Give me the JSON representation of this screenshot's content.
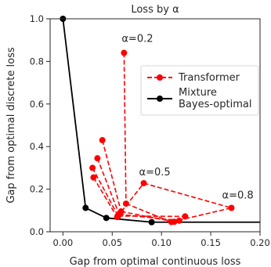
{
  "chart_data": {
    "type": "line",
    "title": "Loss by α",
    "xlabel": "Gap from optimal continuous loss",
    "ylabel": "Gap from optimal discrete loss",
    "xlim": [
      -0.013,
      0.2
    ],
    "ylim": [
      0,
      1.0
    ],
    "xticks": [
      0.0,
      0.05,
      0.1,
      0.15,
      0.2
    ],
    "xtick_labels": [
      "0.00",
      "0.05",
      "0.10",
      "0.15",
      "0.20"
    ],
    "yticks": [
      0.0,
      0.2,
      0.4,
      0.6,
      0.8,
      1.0
    ],
    "ytick_labels": [
      "0.0",
      "0.2",
      "0.4",
      "0.6",
      "0.8",
      "1.0"
    ],
    "grid": false,
    "legend_position": "right",
    "series": [
      {
        "name": "Transformer",
        "color": "#ff0000",
        "line_style": "dashed",
        "marker": "circle",
        "points": [
          [
            0.031,
            0.255
          ],
          [
            0.03,
            0.3
          ],
          [
            0.035,
            0.345
          ],
          [
            0.04,
            0.43
          ],
          [
            0.062,
            0.84
          ],
          [
            0.082,
            0.228
          ],
          [
            0.171,
            0.112
          ],
          [
            0.124,
            0.072
          ],
          [
            0.118,
            0.052
          ],
          [
            0.113,
            0.047
          ],
          [
            0.11,
            0.046
          ],
          [
            0.064,
            0.132
          ],
          [
            0.059,
            0.095
          ],
          [
            0.057,
            0.082
          ],
          [
            0.056,
            0.074
          ],
          [
            0.055,
            0.069
          ]
        ],
        "links": [
          [
            [
              0.031,
              0.255
            ],
            [
              0.055,
              0.069
            ]
          ],
          [
            [
              0.03,
              0.3
            ],
            [
              0.056,
              0.074
            ]
          ],
          [
            [
              0.035,
              0.345
            ],
            [
              0.057,
              0.082
            ]
          ],
          [
            [
              0.04,
              0.43
            ],
            [
              0.059,
              0.095
            ]
          ],
          [
            [
              0.062,
              0.84
            ],
            [
              0.064,
              0.132
            ]
          ],
          [
            [
              0.064,
              0.132
            ],
            [
              0.11,
              0.046
            ]
          ],
          [
            [
              0.059,
              0.095
            ],
            [
              0.113,
              0.047
            ]
          ],
          [
            [
              0.057,
              0.082
            ],
            [
              0.118,
              0.052
            ]
          ],
          [
            [
              0.056,
              0.074
            ],
            [
              0.124,
              0.072
            ]
          ],
          [
            [
              0.055,
              0.069
            ],
            [
              0.082,
              0.228
            ]
          ],
          [
            [
              0.082,
              0.228
            ],
            [
              0.171,
              0.112
            ]
          ],
          [
            [
              0.11,
              0.046
            ],
            [
              0.171,
              0.112
            ]
          ]
        ]
      },
      {
        "name": "Mixture\nBayes-optimal",
        "color": "#000000",
        "line_style": "solid",
        "marker": "circle",
        "points": [
          [
            0.0,
            1.0
          ],
          [
            0.023,
            0.112
          ],
          [
            0.044,
            0.065
          ],
          [
            0.09,
            0.045
          ],
          [
            0.2,
            0.045
          ]
        ]
      }
    ],
    "annotations": [
      {
        "text": "α=0.2",
        "x": 0.062,
        "y": 0.84
      },
      {
        "text": "α=0.5",
        "x": 0.082,
        "y": 0.228
      },
      {
        "text": "α=0.8",
        "x": 0.171,
        "y": 0.112
      }
    ]
  }
}
